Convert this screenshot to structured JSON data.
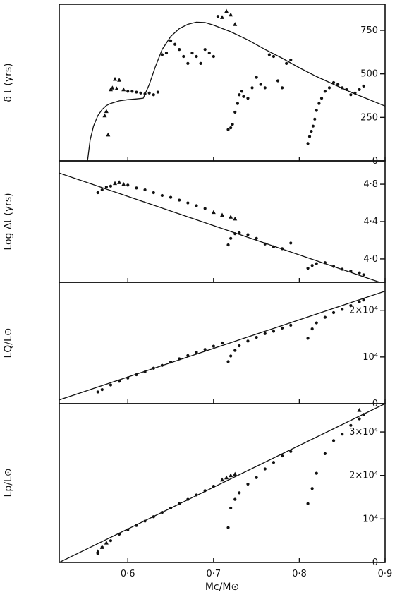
{
  "chart_data": [
    {
      "type": "scatter",
      "ylabel": "δ t (yrs)",
      "ylim": [
        0,
        900
      ],
      "yticks": [
        0,
        250,
        500,
        750
      ],
      "ytick_labels": [
        "0",
        "250",
        "500",
        "750"
      ],
      "curve": {
        "x": [
          0.553,
          0.556,
          0.56,
          0.565,
          0.57,
          0.575,
          0.58,
          0.59,
          0.6,
          0.61,
          0.618,
          0.625,
          0.632,
          0.64,
          0.65,
          0.66,
          0.67,
          0.68,
          0.69,
          0.7,
          0.72,
          0.74,
          0.76,
          0.78,
          0.8,
          0.82,
          0.84,
          0.86,
          0.88,
          0.9
        ],
        "y": [
          0,
          120,
          200,
          260,
          295,
          318,
          330,
          345,
          352,
          356,
          360,
          440,
          540,
          640,
          715,
          760,
          785,
          797,
          795,
          780,
          742,
          695,
          640,
          590,
          535,
          485,
          440,
          395,
          355,
          315
        ]
      },
      "triangles": {
        "x": [
          0.573,
          0.575,
          0.577,
          0.58,
          0.582,
          0.585,
          0.587,
          0.59,
          0.595,
          0.71,
          0.715,
          0.72,
          0.725
        ],
        "y": [
          260,
          285,
          150,
          410,
          420,
          470,
          415,
          465,
          410,
          825,
          860,
          840,
          785
        ]
      },
      "dots": {
        "x": [
          0.6,
          0.605,
          0.61,
          0.615,
          0.62,
          0.625,
          0.63,
          0.635,
          0.64,
          0.645,
          0.65,
          0.655,
          0.66,
          0.665,
          0.67,
          0.675,
          0.68,
          0.685,
          0.69,
          0.695,
          0.7,
          0.705,
          0.717,
          0.72,
          0.722,
          0.725,
          0.728,
          0.73,
          0.733,
          0.735,
          0.74,
          0.745,
          0.75,
          0.755,
          0.76,
          0.765,
          0.77,
          0.775,
          0.78,
          0.785,
          0.79,
          0.81,
          0.812,
          0.814,
          0.816,
          0.818,
          0.82,
          0.823,
          0.826,
          0.83,
          0.835,
          0.84,
          0.845,
          0.85,
          0.855,
          0.86,
          0.865,
          0.87,
          0.875
        ],
        "y": [
          400,
          400,
          395,
          390,
          385,
          390,
          380,
          395,
          610,
          620,
          690,
          670,
          640,
          600,
          560,
          620,
          600,
          560,
          640,
          620,
          600,
          830,
          180,
          190,
          210,
          280,
          330,
          380,
          400,
          370,
          360,
          420,
          480,
          440,
          420,
          610,
          600,
          460,
          420,
          560,
          580,
          100,
          140,
          170,
          200,
          240,
          290,
          330,
          360,
          400,
          420,
          450,
          440,
          420,
          410,
          380,
          390,
          410,
          430
        ]
      }
    },
    {
      "type": "scatter",
      "ylabel": "Log Δt (yrs)",
      "ylim": [
        3.75,
        5.05
      ],
      "yticks": [
        4.0,
        4.4,
        4.8
      ],
      "ytick_labels": [
        "4·0",
        "4·4",
        "4·8"
      ],
      "line": {
        "x": [
          0.52,
          0.9
        ],
        "y": [
          4.92,
          3.73
        ]
      },
      "triangles": {
        "x": [
          0.585,
          0.59,
          0.595,
          0.7,
          0.71,
          0.72,
          0.725
        ],
        "y": [
          4.81,
          4.82,
          4.8,
          4.5,
          4.47,
          4.45,
          4.43
        ]
      },
      "dots": {
        "x": [
          0.565,
          0.57,
          0.575,
          0.58,
          0.6,
          0.61,
          0.62,
          0.63,
          0.64,
          0.65,
          0.66,
          0.67,
          0.68,
          0.69,
          0.717,
          0.72,
          0.725,
          0.73,
          0.74,
          0.75,
          0.76,
          0.77,
          0.78,
          0.79,
          0.81,
          0.815,
          0.82,
          0.83,
          0.84,
          0.85,
          0.86,
          0.87,
          0.875
        ],
        "y": [
          4.71,
          4.74,
          4.77,
          4.78,
          4.79,
          4.76,
          4.74,
          4.71,
          4.68,
          4.66,
          4.63,
          4.6,
          4.57,
          4.54,
          4.15,
          4.22,
          4.27,
          4.28,
          4.26,
          4.22,
          4.16,
          4.13,
          4.11,
          4.17,
          3.9,
          3.93,
          3.95,
          3.96,
          3.92,
          3.89,
          3.87,
          3.85,
          3.83
        ]
      }
    },
    {
      "type": "scatter",
      "ylabel": "LQ/L⊙",
      "ylim": [
        0,
        26000
      ],
      "yticks": [
        0,
        10000,
        20000
      ],
      "ytick_labels": [
        "0",
        "10⁴",
        "2×10⁴"
      ],
      "line": {
        "x": [
          0.52,
          0.9
        ],
        "y": [
          800,
          24100
        ]
      },
      "dots": {
        "x": [
          0.565,
          0.57,
          0.58,
          0.59,
          0.6,
          0.61,
          0.62,
          0.63,
          0.64,
          0.65,
          0.66,
          0.67,
          0.68,
          0.69,
          0.7,
          0.71,
          0.717,
          0.72,
          0.725,
          0.73,
          0.74,
          0.75,
          0.76,
          0.77,
          0.78,
          0.79,
          0.81,
          0.815,
          0.82,
          0.83,
          0.84,
          0.85,
          0.86,
          0.87,
          0.875
        ],
        "y": [
          2500,
          3000,
          4000,
          4800,
          5500,
          6200,
          6800,
          7600,
          8200,
          8900,
          9600,
          10300,
          11000,
          11600,
          12300,
          13000,
          9000,
          10200,
          11400,
          12400,
          13400,
          14200,
          15000,
          15500,
          16200,
          16800,
          14000,
          16000,
          17300,
          18500,
          19500,
          20200,
          21000,
          21800,
          22200
        ]
      }
    },
    {
      "type": "scatter",
      "xlabel": "Mc/M⊙",
      "ylabel": "Lp/L⊙",
      "xlim": [
        0.52,
        0.9
      ],
      "xticks": [
        0.6,
        0.7,
        0.8,
        0.9
      ],
      "xtick_labels": [
        "0·6",
        "0·7",
        "0·8",
        "0·9"
      ],
      "ylim": [
        0,
        36500
      ],
      "yticks": [
        0,
        10000,
        20000,
        30000
      ],
      "ytick_labels": [
        "0",
        "10⁴",
        "2×10⁴",
        "3×10⁴"
      ],
      "line": {
        "x": [
          0.52,
          0.9
        ],
        "y": [
          0,
          36500
        ]
      },
      "triangles": {
        "x": [
          0.565,
          0.57,
          0.575,
          0.71,
          0.715,
          0.72,
          0.725,
          0.87
        ],
        "y": [
          2500,
          3500,
          4500,
          19000,
          19500,
          20000,
          20300,
          35000
        ]
      },
      "dots": {
        "x": [
          0.565,
          0.57,
          0.58,
          0.59,
          0.6,
          0.61,
          0.62,
          0.63,
          0.64,
          0.65,
          0.66,
          0.67,
          0.68,
          0.69,
          0.7,
          0.717,
          0.72,
          0.725,
          0.73,
          0.74,
          0.75,
          0.76,
          0.77,
          0.78,
          0.79,
          0.81,
          0.815,
          0.82,
          0.83,
          0.84,
          0.85,
          0.86,
          0.87,
          0.875
        ],
        "y": [
          2000,
          3500,
          5000,
          6500,
          7500,
          8500,
          9500,
          10500,
          11500,
          12500,
          13500,
          14500,
          15500,
          16500,
          17500,
          8000,
          12500,
          14500,
          16000,
          18000,
          19500,
          21500,
          23000,
          24500,
          25500,
          13500,
          17000,
          20500,
          25000,
          28000,
          29500,
          31500,
          33000,
          34000
        ]
      }
    }
  ]
}
